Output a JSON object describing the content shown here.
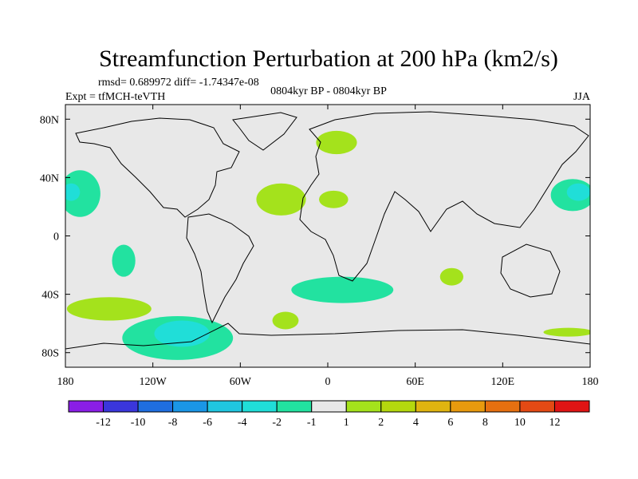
{
  "chart_data": {
    "type": "heatmap",
    "title": "Streamfunction Perturbation at 200 hPa (km2/s)",
    "stats_line": "rmsd= 0.689972 diff= -1.74347e-08",
    "experiment_label": "Expt = tfMCH-teVTH",
    "period_label": "0804kyr BP - 0804kyr BP",
    "season_label": "JJA",
    "x_ticks": [
      {
        "value": -180,
        "label": "180"
      },
      {
        "value": -120,
        "label": "120W"
      },
      {
        "value": -60,
        "label": "60W"
      },
      {
        "value": 0,
        "label": "0"
      },
      {
        "value": 60,
        "label": "60E"
      },
      {
        "value": 120,
        "label": "120E"
      },
      {
        "value": 180,
        "label": "180"
      }
    ],
    "y_ticks": [
      {
        "value": 80,
        "label": "80N"
      },
      {
        "value": 40,
        "label": "40N"
      },
      {
        "value": 0,
        "label": "0"
      },
      {
        "value": -40,
        "label": "40S"
      },
      {
        "value": -80,
        "label": "80S"
      }
    ],
    "xlim": [
      -180,
      180
    ],
    "ylim": [
      -90,
      90
    ],
    "colorbar": {
      "colors": [
        "#8a1ee6",
        "#3a36dc",
        "#1f6ee0",
        "#1a96e6",
        "#20c6e0",
        "#20ded8",
        "#22e2a0",
        "#e8e8e8",
        "#a4e21c",
        "#b4d80e",
        "#e0b410",
        "#e89a0e",
        "#e67010",
        "#e44a14",
        "#e01414"
      ],
      "labels": [
        "-12",
        "-10",
        "-8",
        "-6",
        "-4",
        "-2",
        "-1",
        "1",
        "2",
        "4",
        "6",
        "8",
        "10",
        "12"
      ]
    },
    "regions": [
      {
        "name": "nw-pacific-minus-1-region",
        "level": "-1",
        "color": "#22e2a0",
        "center": [
          -170,
          29
        ],
        "rx": 14,
        "ry": 16
      },
      {
        "name": "nw-pacific-minus-2-core",
        "level": "-2",
        "color": "#20ded8",
        "center": [
          -176,
          30
        ],
        "rx": 6,
        "ry": 6
      },
      {
        "name": "ne-atlantic-plus-1-region",
        "level": "1",
        "color": "#a4e21c",
        "center": [
          -32,
          25
        ],
        "rx": 17,
        "ry": 11
      },
      {
        "name": "scandinavia-plus-1-region",
        "level": "1",
        "color": "#a4e21c",
        "center": [
          6,
          64
        ],
        "rx": 14,
        "ry": 8
      },
      {
        "name": "n-africa-plus-1-region",
        "level": "1",
        "color": "#a4e21c",
        "center": [
          4,
          25
        ],
        "rx": 10,
        "ry": 6
      },
      {
        "name": "w-pacific-minus-1-region",
        "level": "-1",
        "color": "#22e2a0",
        "center": [
          168,
          28
        ],
        "rx": 15,
        "ry": 11
      },
      {
        "name": "w-pacific-minus-2-core",
        "level": "-2",
        "color": "#20ded8",
        "center": [
          172,
          30
        ],
        "rx": 8,
        "ry": 6
      },
      {
        "name": "e-pacific-minus-1-region",
        "level": "-1",
        "color": "#22e2a0",
        "center": [
          -140,
          -17
        ],
        "rx": 8,
        "ry": 11
      },
      {
        "name": "s-atlantic-minus-1-region",
        "level": "-1",
        "color": "#22e2a0",
        "center": [
          10,
          -37
        ],
        "rx": 35,
        "ry": 9
      },
      {
        "name": "indian-ocean-plus-1-region",
        "level": "1",
        "color": "#a4e21c",
        "center": [
          85,
          -28
        ],
        "rx": 8,
        "ry": 6
      },
      {
        "name": "s-pacific-plus-1-region",
        "level": "1",
        "color": "#a4e21c",
        "center": [
          -150,
          -50
        ],
        "rx": 29,
        "ry": 8
      },
      {
        "name": "s-atlantic-plus-1-region",
        "level": "1",
        "color": "#a4e21c",
        "center": [
          -29,
          -58
        ],
        "rx": 9,
        "ry": 6
      },
      {
        "name": "s-pacific-minus-1-region",
        "level": "-1",
        "color": "#22e2a0",
        "center": [
          -103,
          -70
        ],
        "rx": 38,
        "ry": 15
      },
      {
        "name": "s-pacific-minus-2-core",
        "level": "-2",
        "color": "#20ded8",
        "center": [
          -100,
          -67
        ],
        "rx": 19,
        "ry": 9
      },
      {
        "name": "sw-pacific-plus-1-region",
        "level": "1",
        "color": "#a4e21c",
        "center": [
          165,
          -66
        ],
        "rx": 17,
        "ry": 3
      }
    ]
  }
}
